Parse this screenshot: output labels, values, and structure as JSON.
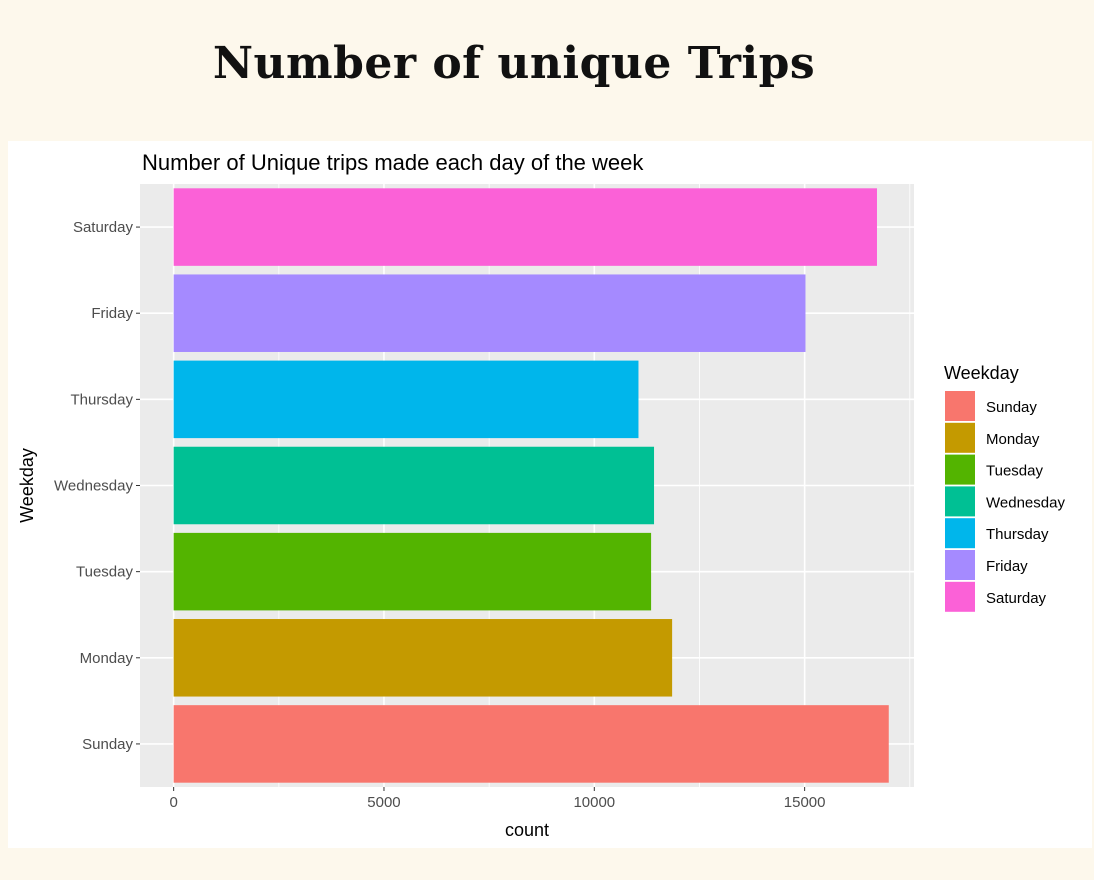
{
  "page": {
    "heading": "Number of unique Trips"
  },
  "colors": {
    "background": "#fdf8ec",
    "panel": "#ebebeb",
    "grid": "#ffffff"
  },
  "chart_data": {
    "type": "bar",
    "orientation": "horizontal",
    "title": "Number of Unique trips made each day of the week",
    "xlabel": "count",
    "ylabel": "Weekday",
    "xlim": [
      -800,
      17600
    ],
    "x_ticks": [
      0,
      5000,
      10000,
      15000
    ],
    "x_tick_labels": [
      "0",
      "5000",
      "10000",
      "15000"
    ],
    "grid": true,
    "categories": [
      "Sunday",
      "Monday",
      "Tuesday",
      "Wednesday",
      "Thursday",
      "Friday",
      "Saturday"
    ],
    "values": [
      17000,
      11850,
      11350,
      11420,
      11050,
      15020,
      16720
    ],
    "colors": [
      "#F8766D",
      "#C49A00",
      "#53B400",
      "#00C094",
      "#00B6EB",
      "#A58AFF",
      "#FB61D7"
    ],
    "legend": {
      "title": "Weekday",
      "placement": "right",
      "entries": [
        "Sunday",
        "Monday",
        "Tuesday",
        "Wednesday",
        "Thursday",
        "Friday",
        "Saturday"
      ]
    }
  }
}
